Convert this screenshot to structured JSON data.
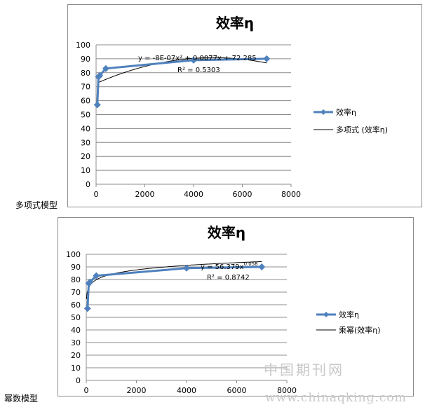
{
  "watermark": {
    "line1": "中国期刊网",
    "line2": "www.chinaqking.com"
  },
  "chart_data": [
    {
      "type": "scatter",
      "model_label": "多项式模型",
      "title": "效率η",
      "xlim": [
        0,
        8000
      ],
      "ylim": [
        0,
        100
      ],
      "x_ticks": [
        0,
        2000,
        4000,
        6000,
        8000
      ],
      "y_ticks": [
        0,
        10,
        20,
        30,
        40,
        50,
        60,
        70,
        80,
        90,
        100
      ],
      "grid": true,
      "legend_placement": "right",
      "series": [
        {
          "name": "效率η",
          "x": [
            50,
            100,
            150,
            400,
            4000,
            7000
          ],
          "y": [
            57,
            77,
            78,
            83,
            89,
            90
          ],
          "color": "#4f81bd"
        }
      ],
      "trendline": {
        "name": "多项式 (效率η)",
        "kind": "polynomial",
        "coefficients": [
          -8e-07,
          0.0077,
          72.285
        ],
        "equation": "y = -8E-07x² + 0.0077x + 72.285",
        "r2": "R² = 0.5303",
        "color": "#000000"
      }
    },
    {
      "type": "scatter",
      "model_label": "幂数模型",
      "title": "效率η",
      "xlim": [
        0,
        8000
      ],
      "ylim": [
        0,
        100
      ],
      "x_ticks": [
        0,
        2000,
        4000,
        6000,
        8000
      ],
      "y_ticks": [
        0,
        10,
        20,
        30,
        40,
        50,
        60,
        70,
        80,
        90,
        100
      ],
      "grid": true,
      "legend_placement": "right",
      "series": [
        {
          "name": "效率η",
          "x": [
            50,
            100,
            150,
            400,
            4000,
            7000
          ],
          "y": [
            57,
            77,
            78,
            83,
            89,
            90
          ],
          "color": "#4f81bd"
        }
      ],
      "trendline": {
        "name": "乘幂(效率η)",
        "kind": "power",
        "a": 56.379,
        "b": 0.058,
        "equation": "y = 56.379x",
        "exponent": "0.058",
        "r2": "R² = 0.8742",
        "color": "#000000"
      }
    }
  ]
}
